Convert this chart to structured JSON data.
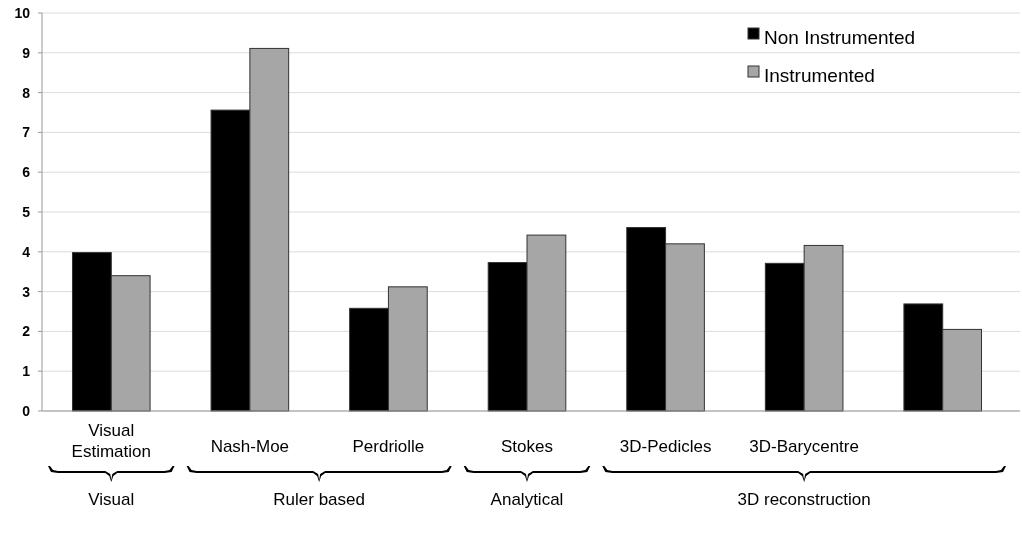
{
  "chart_data": {
    "type": "bar",
    "categories": [
      "Visual Estimation",
      "Nash-Moe",
      "Perdriolle",
      "Stokes",
      "3D-Pedicles",
      "3D-Barycentre",
      null
    ],
    "series": [
      {
        "name": "Non Instrumented",
        "color": "#000000",
        "values": [
          3.98,
          7.56,
          2.58,
          3.73,
          4.61,
          3.71,
          2.69
        ]
      },
      {
        "name": "Instrumented",
        "color": "#a6a6a6",
        "values": [
          3.4,
          9.11,
          3.12,
          4.42,
          4.2,
          4.16,
          2.05
        ]
      }
    ],
    "ylim": [
      0,
      10
    ],
    "yticks": [
      0,
      1,
      2,
      3,
      4,
      5,
      6,
      7,
      8,
      9,
      10
    ],
    "grid": "y",
    "legend": "top right",
    "annotations": [
      "Visual",
      "Ruler based",
      "Analytical",
      "3D reconstruction"
    ]
  }
}
